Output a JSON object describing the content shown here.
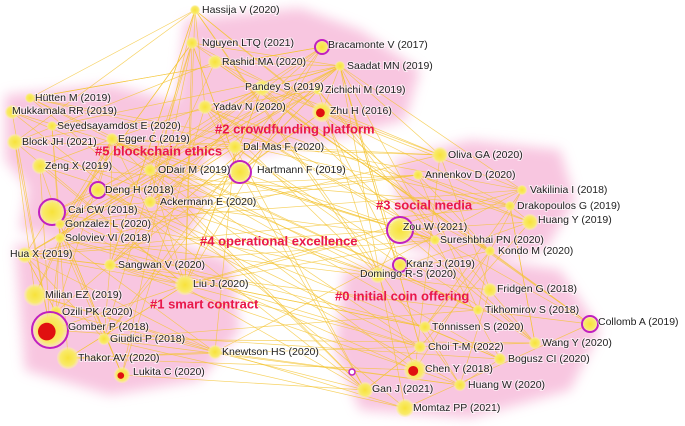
{
  "clusters": [
    {
      "label": "#0 initial coin offering"
    },
    {
      "label": "#1 smart contract"
    },
    {
      "label": "#2 crowdfunding platform"
    },
    {
      "label": "#3 social media"
    },
    {
      "label": "#4 operational excellence"
    },
    {
      "label": "#5 blockchain ethics"
    }
  ],
  "nodes": [
    {
      "label": "Hassija V (2020)"
    },
    {
      "label": "Nguyen LTQ (2021)"
    },
    {
      "label": "Bracamonte V (2017)"
    },
    {
      "label": "Rashid MA (2020)"
    },
    {
      "label": "Saadat MN (2019)"
    },
    {
      "label": "Pandey S (2019)"
    },
    {
      "label": "Zichichi M (2019)"
    },
    {
      "label": "Yadav N (2020)"
    },
    {
      "label": "Zhu H (2016)"
    },
    {
      "label": "Hütten M (2019)"
    },
    {
      "label": "Mukkamala RR (2019)"
    },
    {
      "label": "Seyedsayamdost E (2020)"
    },
    {
      "label": "Egger C (2019)"
    },
    {
      "label": "Block JH (2021)"
    },
    {
      "label": "Dal Mas F (2020)"
    },
    {
      "label": "Zeng X (2019)"
    },
    {
      "label": "ODair M (2019)"
    },
    {
      "label": "Hartmann F (2019)"
    },
    {
      "label": "Deng H (2018)"
    },
    {
      "label": "Ackermann E (2020)"
    },
    {
      "label": "Cai CW (2018)"
    },
    {
      "label": "Gonzalez L (2020)"
    },
    {
      "label": "Soloviev VI (2018)"
    },
    {
      "label": "Hua X (2019)"
    },
    {
      "label": "Sangwan V (2020)"
    },
    {
      "label": "Milian EZ (2019)"
    },
    {
      "label": "Liu J (2020)"
    },
    {
      "label": "Ozili PK (2020)"
    },
    {
      "label": "Gomber P (2018)"
    },
    {
      "label": "Giudici P (2018)"
    },
    {
      "label": "Thakor AV (2020)"
    },
    {
      "label": "Knewtson HS (2020)"
    },
    {
      "label": "Lukita C (2020)"
    },
    {
      "label": "Oliva GA (2020)"
    },
    {
      "label": "Annenkov D (2020)"
    },
    {
      "label": "Vakilinia I (2018)"
    },
    {
      "label": "Drakopoulos G (2019)"
    },
    {
      "label": "Zou W (2021)"
    },
    {
      "label": "Huang Y (2019)"
    },
    {
      "label": "Sureshbhai PN (2020)"
    },
    {
      "label": "Kondo M (2020)"
    },
    {
      "label": "Kranz J (2019)"
    },
    {
      "label": "Domingo R-S (2020)"
    },
    {
      "label": "Fridgen G (2018)"
    },
    {
      "label": "Tikhomirov S (2018)"
    },
    {
      "label": "Collomb A (2019)"
    },
    {
      "label": "Tönnissen S (2020)"
    },
    {
      "label": "Choi T-M (2022)"
    },
    {
      "label": "Wang Y (2020)"
    },
    {
      "label": "Chen Y (2018)"
    },
    {
      "label": "Bogusz CI (2020)"
    },
    {
      "label": "Gan J (2021)"
    },
    {
      "label": "Huang W (2020)"
    },
    {
      "label": "Momtaz PP (2021)"
    }
  ]
}
